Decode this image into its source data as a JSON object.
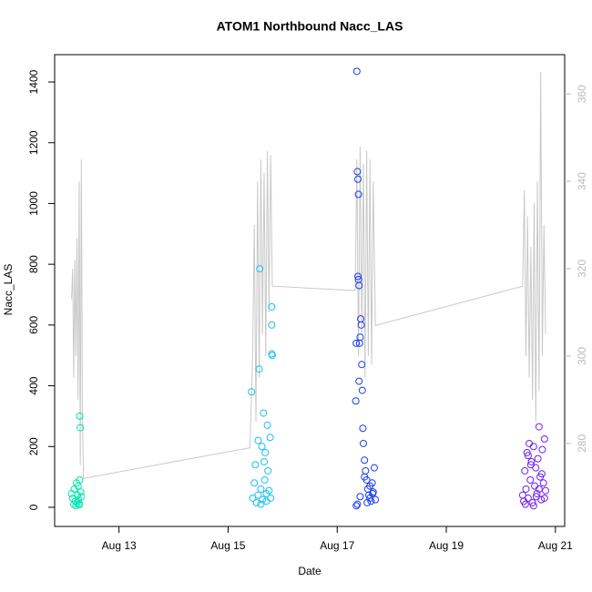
{
  "chart_data": {
    "type": "scatter",
    "title": "ATOM1 Northbound Nacc_LAS",
    "xlabel": "Date",
    "ylabel": "Nacc_LAS",
    "xlim": [
      11.82,
      21.17
    ],
    "ylim": [
      -63,
      1490
    ],
    "y2lim": [
      261,
      369
    ],
    "xticks": [
      {
        "value": 13,
        "label": "Aug 13"
      },
      {
        "value": 15,
        "label": "Aug 15"
      },
      {
        "value": 17,
        "label": "Aug 17"
      },
      {
        "value": 19,
        "label": "Aug 19"
      },
      {
        "value": 21,
        "label": "Aug 21"
      }
    ],
    "yticks": [
      0,
      200,
      400,
      600,
      800,
      1000,
      1200,
      1400
    ],
    "y2ticks": [
      280,
      300,
      320,
      340,
      360
    ],
    "axis_color": "#000000",
    "axis2_color": "#bbbbbb",
    "series": [
      {
        "color": "#00e6b0",
        "x": [
          12.13,
          12.15,
          12.17,
          12.18,
          12.2,
          12.21,
          12.22,
          12.23,
          12.24,
          12.25,
          12.26,
          12.27,
          12.28,
          12.29,
          12.3,
          12.31,
          12.27,
          12.28
        ],
        "values": [
          45,
          30,
          10,
          60,
          20,
          5,
          80,
          15,
          40,
          70,
          25,
          8,
          300,
          262,
          50,
          35,
          12,
          90
        ]
      },
      {
        "color": "#18c0f0",
        "x": [
          15.43,
          15.45,
          15.48,
          15.5,
          15.52,
          15.55,
          15.57,
          15.58,
          15.6,
          15.62,
          15.63,
          15.65,
          15.67,
          15.68,
          15.7,
          15.72,
          15.73,
          15.75,
          15.77,
          15.78,
          15.8,
          15.8,
          15.8,
          15.81,
          15.6,
          15.55,
          15.66,
          15.7
        ],
        "values": [
          380,
          30,
          80,
          140,
          15,
          220,
          455,
          785,
          60,
          200,
          25,
          310,
          90,
          180,
          45,
          270,
          120,
          55,
          230,
          30,
          660,
          600,
          505,
          500,
          10,
          40,
          150,
          20
        ]
      },
      {
        "color": "#1a3cf0",
        "x": [
          17.34,
          17.35,
          17.36,
          17.37,
          17.38,
          17.38,
          17.39,
          17.39,
          17.4,
          17.4,
          17.41,
          17.42,
          17.43,
          17.44,
          17.45,
          17.46,
          17.47,
          17.48,
          17.5,
          17.52,
          17.54,
          17.56,
          17.58,
          17.6,
          17.62,
          17.64,
          17.66,
          17.68,
          17.7,
          17.37,
          17.42,
          17.5,
          17.55,
          17.6,
          17.65,
          17.35
        ],
        "values": [
          350,
          540,
          1435,
          1105,
          1080,
          760,
          1030,
          750,
          730,
          415,
          540,
          560,
          620,
          600,
          470,
          385,
          260,
          210,
          155,
          120,
          90,
          60,
          40,
          30,
          20,
          80,
          50,
          130,
          25,
          10,
          35,
          100,
          15,
          70,
          45,
          5
        ]
      },
      {
        "color": "#7020f0",
        "x": [
          20.4,
          20.42,
          20.44,
          20.46,
          20.48,
          20.5,
          20.52,
          20.54,
          20.56,
          20.58,
          20.6,
          20.62,
          20.64,
          20.66,
          20.68,
          20.7,
          20.72,
          20.74,
          20.76,
          20.78,
          20.8,
          20.82,
          20.45,
          20.55,
          20.65,
          20.75,
          20.5,
          20.6,
          20.7,
          20.8
        ],
        "values": [
          40,
          20,
          120,
          60,
          180,
          30,
          210,
          90,
          150,
          15,
          200,
          70,
          130,
          45,
          160,
          265,
          100,
          25,
          190,
          80,
          225,
          55,
          10,
          140,
          35,
          110,
          170,
          5,
          60,
          30
        ]
      },
      {
        "type": "line",
        "axis": "y2",
        "color": "#c8c8c8",
        "x": [
          12.13,
          12.15,
          12.17,
          12.19,
          12.21,
          12.23,
          12.25,
          12.27,
          12.29,
          12.31,
          12.33,
          12.35,
          15.4,
          15.45,
          15.48,
          15.51,
          15.54,
          15.57,
          15.6,
          15.63,
          15.66,
          15.69,
          15.72,
          15.75,
          15.78,
          15.81,
          17.33,
          17.36,
          17.39,
          17.42,
          17.45,
          17.48,
          17.51,
          17.54,
          17.57,
          17.6,
          17.63,
          17.66,
          17.7,
          20.4,
          20.43,
          20.46,
          20.49,
          20.52,
          20.55,
          20.58,
          20.61,
          20.64,
          20.67,
          20.7,
          20.73,
          20.76,
          20.79,
          20.82
        ],
        "values": [
          313,
          320,
          295,
          322,
          300,
          327,
          290,
          340,
          275,
          345,
          285,
          272,
          279,
          300,
          330,
          285,
          340,
          295,
          345,
          305,
          342,
          300,
          347,
          310,
          346,
          316,
          315,
          345,
          300,
          348,
          305,
          344,
          295,
          347,
          300,
          345,
          298,
          340,
          307,
          316,
          338,
          300,
          332,
          295,
          325,
          290,
          335,
          285,
          340,
          292,
          365,
          300,
          330,
          305
        ]
      }
    ]
  }
}
